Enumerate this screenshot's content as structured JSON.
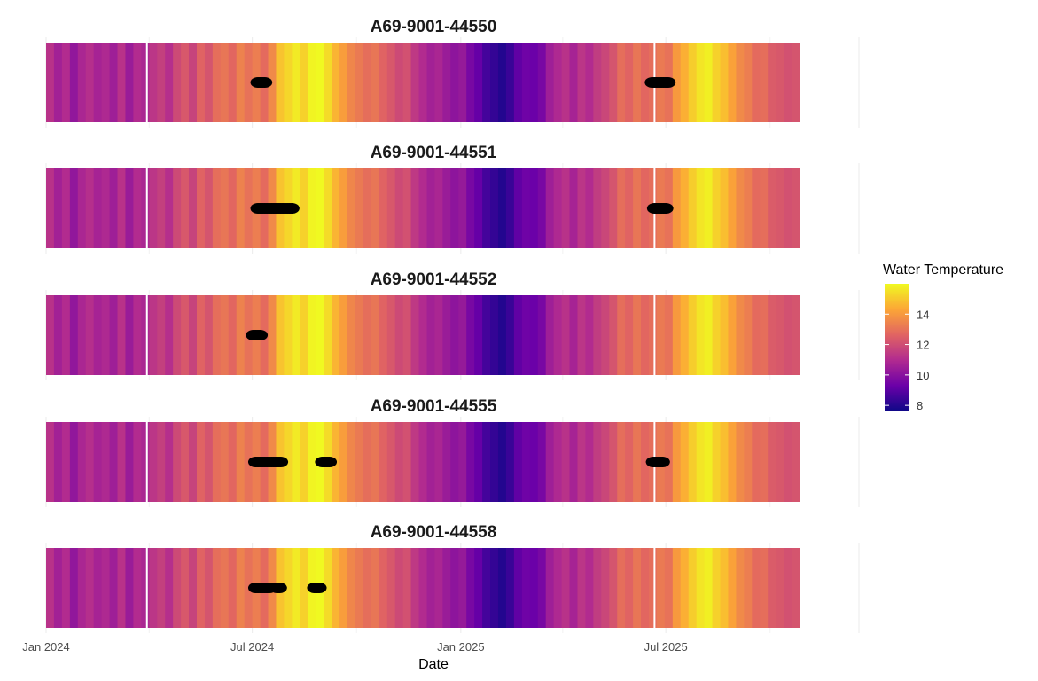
{
  "chart_data": {
    "type": "heatmap",
    "title": "",
    "xlabel": "Date",
    "ylabel": "",
    "x_range": [
      "2024-01-01",
      "2025-11-14"
    ],
    "x_ticks": [
      {
        "date": "2024-01-01",
        "label": "Jan 2024"
      },
      {
        "date": "2024-07-01",
        "label": "Jul 2024"
      },
      {
        "date": "2025-01-01",
        "label": "Jan 2025"
      },
      {
        "date": "2025-07-01",
        "label": "Jul 2025"
      }
    ],
    "x_minor_ticks": [
      "2024-04-01",
      "2024-10-01",
      "2025-04-01",
      "2025-10-01"
    ],
    "reference_lines": [
      "2024-03-30",
      "2025-06-21"
    ],
    "legend": {
      "title": "Water Temperature",
      "position": "right",
      "range": [
        7.6,
        16.0
      ],
      "ticks": [
        8,
        10,
        12,
        14
      ],
      "palette": "plasma",
      "colors": [
        "#0d0887",
        "#6a00a8",
        "#b12a90",
        "#e16462",
        "#fca636",
        "#f0f921"
      ]
    },
    "temperature_series": {
      "description": "Weekly water temperature (deg C) shared by all panels",
      "start": "2024-01-01",
      "step_days": 7,
      "values": [
        11.2,
        10.6,
        11.0,
        10.2,
        10.8,
        11.1,
        10.7,
        10.9,
        10.5,
        11.2,
        10.4,
        11.0,
        10.8,
        11.3,
        11.6,
        11.1,
        11.9,
        12.3,
        11.7,
        12.6,
        12.2,
        12.9,
        13.1,
        12.7,
        13.4,
        13.0,
        13.3,
        12.8,
        13.6,
        14.9,
        15.3,
        15.7,
        15.2,
        15.9,
        16.0,
        15.4,
        14.6,
        14.1,
        13.5,
        13.2,
        12.9,
        13.1,
        12.6,
        12.3,
        11.9,
        12.1,
        11.4,
        11.0,
        10.6,
        10.8,
        10.4,
        10.1,
        10.3,
        9.6,
        9.2,
        8.6,
        8.3,
        8.0,
        8.4,
        9.1,
        9.4,
        9.3,
        9.6,
        10.5,
        10.9,
        11.2,
        10.7,
        11.3,
        11.0,
        11.5,
        11.8,
        12.2,
        12.9,
        12.6,
        13.1,
        12.7,
        12.9,
        13.2,
        13.0,
        14.0,
        14.5,
        15.1,
        15.6,
        15.8,
        15.2,
        14.8,
        14.2,
        13.6,
        13.3,
        12.8,
        12.9,
        12.4,
        12.3,
        12.1,
        12.2
      ]
    },
    "panels": [
      {
        "title": "A69-9001-44550",
        "detections": [
          "2024-07-06",
          "2024-07-08",
          "2024-07-10",
          "2024-07-12",
          "2025-06-19",
          "2025-06-21",
          "2025-06-23",
          "2025-06-25",
          "2025-06-27",
          "2025-06-29",
          "2025-07-01",
          "2025-07-03"
        ]
      },
      {
        "title": "A69-9001-44551",
        "detections": [
          "2024-07-06",
          "2024-07-08",
          "2024-07-10",
          "2024-07-12",
          "2024-07-14",
          "2024-07-16",
          "2024-07-18",
          "2024-07-20",
          "2024-07-22",
          "2024-07-24",
          "2024-07-26",
          "2024-07-28",
          "2024-07-30",
          "2024-08-01",
          "2024-08-03",
          "2024-08-05",
          "2025-06-21",
          "2025-06-23",
          "2025-06-25",
          "2025-06-27",
          "2025-06-29",
          "2025-07-01"
        ]
      },
      {
        "title": "A69-9001-44552",
        "detections": [
          "2024-07-02",
          "2024-07-04",
          "2024-07-06",
          "2024-07-08"
        ]
      },
      {
        "title": "A69-9001-44555",
        "detections": [
          "2024-07-04",
          "2024-07-06",
          "2024-07-08",
          "2024-07-10",
          "2024-07-12",
          "2024-07-14",
          "2024-07-16",
          "2024-07-18",
          "2024-07-20",
          "2024-07-22",
          "2024-07-24",
          "2024-07-26",
          "2024-09-01",
          "2024-09-03",
          "2024-09-05",
          "2024-09-07",
          "2025-06-20",
          "2025-06-22",
          "2025-06-24",
          "2025-06-26",
          "2025-06-28"
        ]
      },
      {
        "title": "A69-9001-44558",
        "detections": [
          "2024-07-04",
          "2024-07-06",
          "2024-07-08",
          "2024-07-10",
          "2024-07-12",
          "2024-07-14",
          "2024-07-16",
          "2024-07-23",
          "2024-07-25",
          "2024-08-25",
          "2024-08-27",
          "2024-08-29"
        ]
      }
    ]
  }
}
